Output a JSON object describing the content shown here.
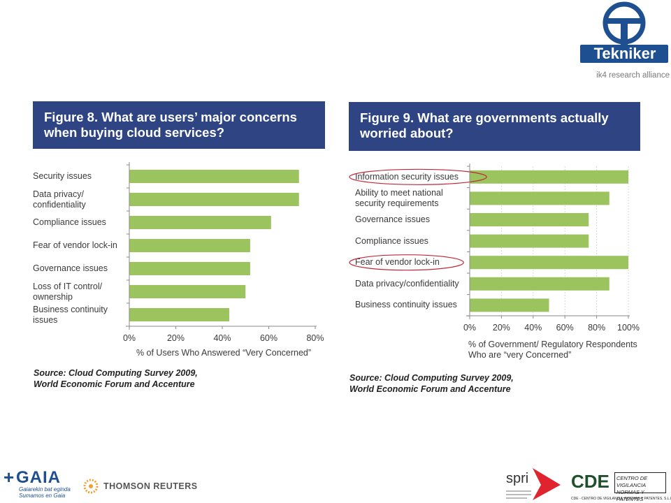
{
  "header_logo": {
    "name": "Tekniker",
    "tagline": "ik4 research alliance",
    "color": "#1d4f91"
  },
  "figure8": {
    "title": "Figure 8. What are users’ major concerns when buying cloud services?",
    "source": "Source: Cloud Computing Survey 2009,\nWorld Economic Forum and Accenture"
  },
  "figure9": {
    "title": "Figure 9. What are governments actually worried about?",
    "source": "Source: Cloud Computing Survey 2009,\nWorld Economic Forum and Accenture"
  },
  "chart_data": [
    {
      "type": "bar",
      "orientation": "horizontal",
      "title": "Figure 8. What are users’ major concerns when buying cloud services?",
      "categories": [
        "Security issues",
        "Data privacy/\nconfidentiality",
        "Compliance issues",
        "Fear of vendor lock-in",
        "Governance issues",
        "Loss of IT control/\nownership",
        "Business continuity\nissues"
      ],
      "values": [
        73,
        73,
        61,
        52,
        52,
        50,
        43
      ],
      "xlabel": "% of Users Who Answered “Very Concerned”",
      "ylabel": "",
      "xlim": [
        0,
        80
      ],
      "xticks": [
        "0%",
        "20%",
        "40%",
        "60%",
        "80%"
      ],
      "grid": false,
      "bar_color": "#9bc45f"
    },
    {
      "type": "bar",
      "orientation": "horizontal",
      "title": "Figure 9. What are governments actually worried about?",
      "categories": [
        "Information security issues",
        "Ability to meet national\nsecurity requirements",
        "Governance issues",
        "Compliance issues",
        "Fear of vendor lock-in",
        "Data privacy/confidentiality",
        "Business continuity issues"
      ],
      "values": [
        100,
        88,
        75,
        75,
        100,
        88,
        50
      ],
      "highlighted": [
        "Information security issues",
        "Fear of vendor lock-in"
      ],
      "highlight_color": "#c0283a",
      "xlabel": "% of Government/ Regulatory Respondents\nWho are “very Concerned”",
      "ylabel": "",
      "xlim": [
        0,
        100
      ],
      "xticks": [
        "0%",
        "20%",
        "40%",
        "60%",
        "80%",
        "100%"
      ],
      "grid": true,
      "bar_color": "#9bc45f"
    }
  ],
  "footer": {
    "gaia_name": "GAIA",
    "gaia_tagline": "Gaiarekin bat eginda\nSumamos en Gaia",
    "thomson": "THOMSON REUTERS",
    "spri": "spri",
    "cde": "CDE",
    "cde_box": "CENTRO DE VIGILANCIA\nNORMAS Y PATENTES",
    "cde_caption": "CDE - CENTRO DE VIGILANCIA, NORMAS Y PATENTES, S.L.L."
  }
}
